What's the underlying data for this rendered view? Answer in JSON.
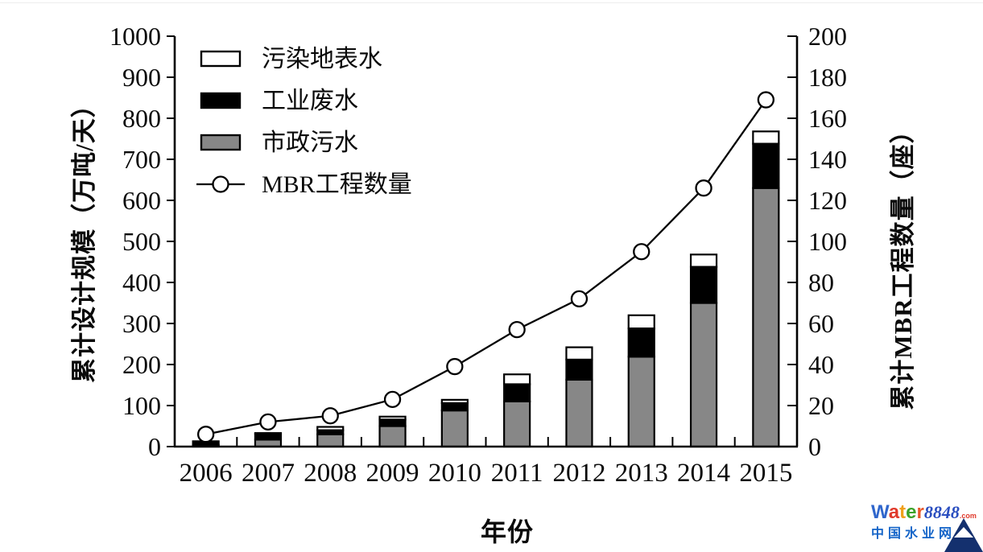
{
  "chart_data": {
    "type": "bar",
    "subtype": "stacked-bars-with-line-dual-axis",
    "categories": [
      "2006",
      "2007",
      "2008",
      "2009",
      "2010",
      "2011",
      "2012",
      "2013",
      "2014",
      "2015"
    ],
    "series": [
      {
        "name": "污染地表水",
        "type": "bar",
        "stack_index": 2,
        "color": "#ffffff",
        "values": [
          0,
          2,
          8,
          7,
          8,
          24,
          30,
          32,
          30,
          30
        ]
      },
      {
        "name": "工业废水",
        "type": "bar",
        "stack_index": 1,
        "color": "#000000",
        "values": [
          9,
          14,
          10,
          16,
          18,
          42,
          49,
          69,
          88,
          108
        ]
      },
      {
        "name": "市政污水",
        "type": "bar",
        "stack_index": 0,
        "color": "#878787",
        "values": [
          4,
          17,
          30,
          50,
          88,
          110,
          163,
          219,
          350,
          630
        ]
      },
      {
        "name": "MBR工程数量",
        "type": "line",
        "axis": "right",
        "color": "#000000",
        "marker": "open-circle",
        "values": [
          6,
          12,
          15,
          23,
          39,
          57,
          72,
          95,
          126,
          169
        ]
      }
    ],
    "bar_totals": [
      13,
      33,
      48,
      73,
      114,
      176,
      242,
      320,
      468,
      768
    ],
    "left_axis": {
      "label": "累计设计规模（万吨/天）",
      "min": 0,
      "max": 1000,
      "step": 100
    },
    "right_axis": {
      "label": "累计MBR工程数量（座）",
      "min": 0,
      "max": 200,
      "step": 20
    },
    "x_axis": {
      "label": "年份"
    },
    "legend": {
      "position": "top-left-inside",
      "order": [
        "污染地表水",
        "工业废水",
        "市政污水",
        "MBR工程数量"
      ]
    },
    "grid": "off",
    "title": ""
  },
  "logo": {
    "brand_letters": [
      {
        "ch": "W",
        "color": "#2f66cc"
      },
      {
        "ch": "a",
        "color": "#e0392b"
      },
      {
        "ch": "t",
        "color": "#f0a019"
      },
      {
        "ch": "e",
        "color": "#3ca32a"
      },
      {
        "ch": "r",
        "color": "#e8572a"
      }
    ],
    "number": "8848",
    "number_color": "#2b4fc0",
    "tld": ".com",
    "tld_color": "#e0392b",
    "subtitle": "中国水业网",
    "subtitle_color": "#1464c8",
    "mountain_color": "#14306e"
  }
}
